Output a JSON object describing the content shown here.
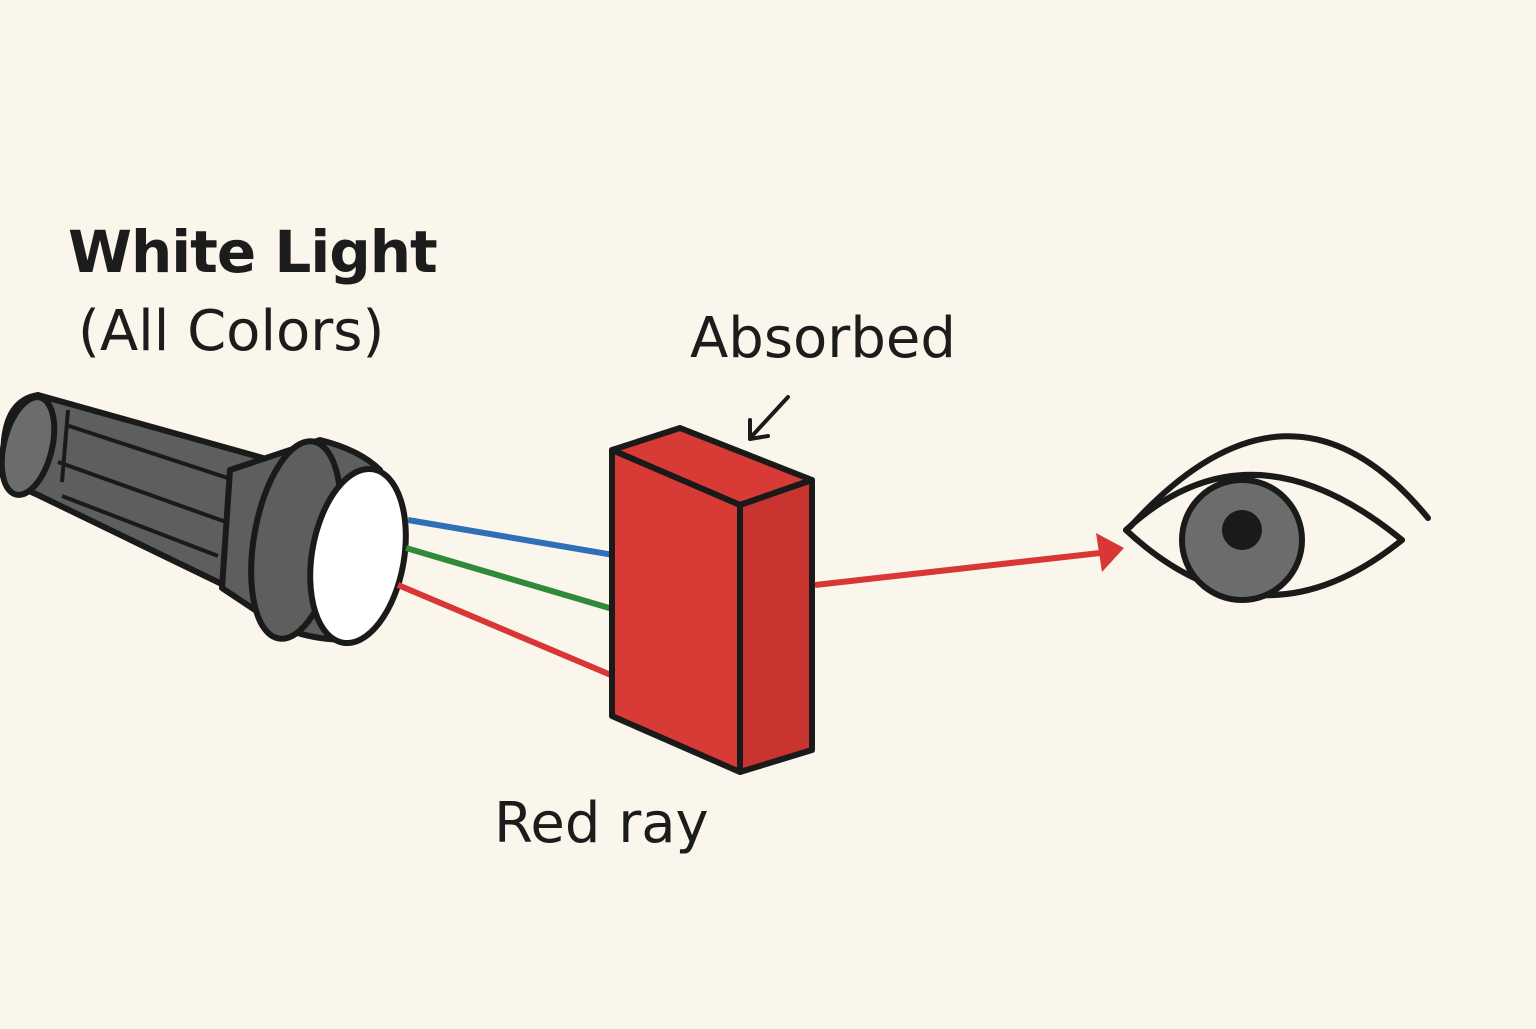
{
  "labels": {
    "source_line1": "White Light",
    "source_line2": "(All Colors)",
    "absorbed": "Absorbed",
    "transmitted": "Red ray"
  },
  "icons": {
    "source": "flashlight-icon",
    "filter": "red-block-filter",
    "observer": "eye-icon"
  },
  "colors": {
    "background": "#faf6ec",
    "blue_ray": "#2f6fb6",
    "green_ray": "#2f8a3a",
    "red_ray": "#d93636",
    "filter_front": "#d83a36",
    "filter_side": "#c93330",
    "flashlight_body": "#5c5f5c",
    "iris": "#6b6d6b",
    "outline": "#1a1a1a"
  }
}
